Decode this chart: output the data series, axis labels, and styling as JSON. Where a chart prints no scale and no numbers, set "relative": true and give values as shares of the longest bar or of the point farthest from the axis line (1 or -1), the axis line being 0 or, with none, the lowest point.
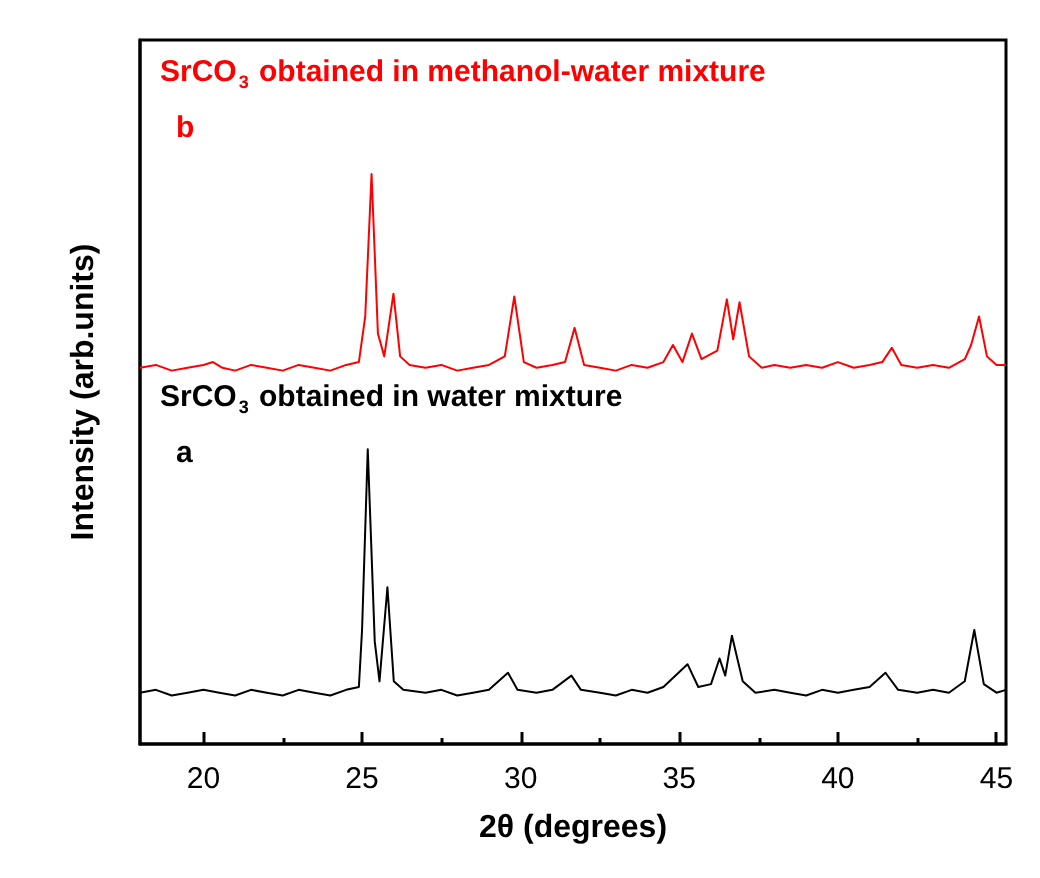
{
  "chart_data": {
    "type": "line",
    "relative": true,
    "xlabel": "2θ (degrees)",
    "ylabel": "Intensity (arb.units)",
    "xlim": [
      18,
      45.3
    ],
    "xticks": [
      20,
      {
        "value": 22.5,
        "label": null
      },
      25,
      {
        "value": 27.5,
        "label": null
      },
      30,
      {
        "value": 32.5,
        "label": null
      },
      35,
      {
        "value": 37.5,
        "label": null
      },
      40,
      {
        "value": 42.5,
        "label": null
      },
      45
    ],
    "tick_labels": "x",
    "grid": false,
    "annotations": [
      "b",
      "a"
    ],
    "series": [
      {
        "name": "SrCO$_{3}$ obtained in methanol-water mixture",
        "color": "#ff0000",
        "x": [
          18,
          18.5,
          19,
          19.5,
          20,
          20.3,
          20.6,
          21,
          21.5,
          22,
          22.5,
          23,
          23.5,
          24,
          24.5,
          24.9,
          25.1,
          25.3,
          25.5,
          25.7,
          25.99,
          26.2,
          26.5,
          27,
          27.5,
          28,
          28.5,
          29,
          29.5,
          29.8,
          30.1,
          30.5,
          31,
          31.4,
          31.7,
          32,
          32.5,
          33,
          33.5,
          34,
          34.5,
          34.8,
          35.1,
          35.4,
          35.7,
          36.2,
          36.5,
          36.7,
          36.9,
          37.2,
          37.6,
          38,
          38.5,
          39,
          39.5,
          40,
          40.5,
          41,
          41.4,
          41.7,
          42,
          42.5,
          43,
          43.5,
          44,
          44.2,
          44.45,
          44.7,
          45,
          45.3
        ],
        "values": [
          0.66,
          0.665,
          0.655,
          0.66,
          0.665,
          0.67,
          0.66,
          0.655,
          0.665,
          0.66,
          0.655,
          0.665,
          0.66,
          0.655,
          0.665,
          0.67,
          0.75,
          1.0,
          0.72,
          0.68,
          0.79,
          0.68,
          0.665,
          0.66,
          0.665,
          0.655,
          0.66,
          0.665,
          0.68,
          0.785,
          0.67,
          0.66,
          0.665,
          0.67,
          0.73,
          0.665,
          0.66,
          0.655,
          0.665,
          0.66,
          0.67,
          0.7,
          0.67,
          0.72,
          0.675,
          0.69,
          0.78,
          0.71,
          0.775,
          0.68,
          0.66,
          0.665,
          0.66,
          0.665,
          0.66,
          0.67,
          0.66,
          0.665,
          0.67,
          0.695,
          0.665,
          0.66,
          0.665,
          0.66,
          0.675,
          0.7,
          0.75,
          0.68,
          0.665,
          0.665
        ]
      },
      {
        "name": "SrCO$_{3}$ obtained in water mixture",
        "color": "#000000",
        "x": [
          18,
          18.5,
          19,
          19.5,
          20,
          20.5,
          21,
          21.5,
          22,
          22.5,
          23,
          23.5,
          24,
          24.5,
          24.9,
          25.0,
          25.18,
          25.4,
          25.55,
          25.8,
          26.0,
          26.3,
          27,
          27.5,
          28,
          28.5,
          29,
          29.6,
          29.9,
          30.5,
          31,
          31.6,
          31.9,
          32.5,
          33,
          33.5,
          34,
          34.5,
          35.26,
          35.6,
          36,
          36.27,
          36.45,
          36.66,
          37,
          37.4,
          38,
          38.5,
          39,
          39.5,
          40,
          40.5,
          41,
          41.5,
          41.9,
          42.5,
          43,
          43.5,
          44,
          44.3,
          44.6,
          45,
          45.3
        ],
        "values": [
          0.09,
          0.095,
          0.085,
          0.09,
          0.095,
          0.09,
          0.085,
          0.095,
          0.09,
          0.085,
          0.095,
          0.09,
          0.085,
          0.095,
          0.1,
          0.2,
          0.517,
          0.18,
          0.11,
          0.275,
          0.11,
          0.095,
          0.09,
          0.095,
          0.085,
          0.09,
          0.095,
          0.125,
          0.095,
          0.09,
          0.095,
          0.12,
          0.095,
          0.09,
          0.085,
          0.095,
          0.09,
          0.1,
          0.14,
          0.1,
          0.105,
          0.15,
          0.12,
          0.19,
          0.11,
          0.09,
          0.095,
          0.09,
          0.085,
          0.095,
          0.09,
          0.095,
          0.1,
          0.125,
          0.095,
          0.09,
          0.095,
          0.09,
          0.11,
          0.2,
          0.105,
          0.09,
          0.095
        ]
      }
    ]
  }
}
